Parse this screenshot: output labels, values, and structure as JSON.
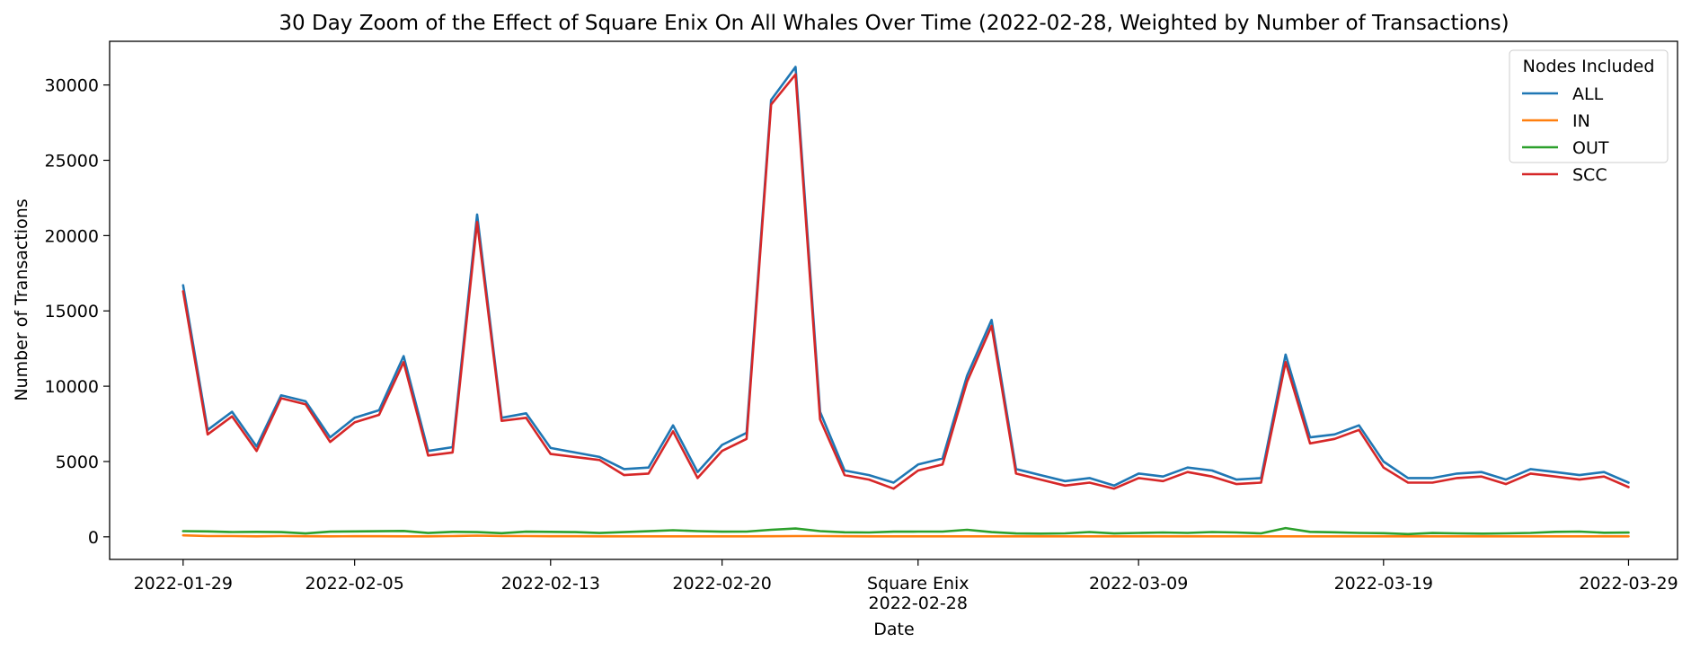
{
  "chart_data": {
    "type": "line",
    "title": "30 Day Zoom of the Effect of Square Enix On All Whales Over Time (2022-02-28, Weighted by Number of Transactions)",
    "xlabel": "Date",
    "ylabel": "Number of Transactions",
    "ylim": [
      -1500,
      32900
    ],
    "yticks": [
      0,
      5000,
      10000,
      15000,
      20000,
      25000,
      30000
    ],
    "xlim": [
      "2022-01-26",
      "2022-03-31"
    ],
    "xticks": [
      "2022-01-29",
      "2022-02-05",
      "2022-02-13",
      "2022-02-20",
      "2022-02-28",
      "2022-03-09",
      "2022-03-19",
      "2022-03-29"
    ],
    "event": {
      "date": "2022-02-28",
      "label": "Square Enix"
    },
    "legend": {
      "title": "Nodes Included",
      "placement": "top-right"
    },
    "grid": false,
    "dates": [
      "2022-01-29",
      "2022-01-30",
      "2022-01-31",
      "2022-02-01",
      "2022-02-02",
      "2022-02-03",
      "2022-02-04",
      "2022-02-05",
      "2022-02-06",
      "2022-02-07",
      "2022-02-08",
      "2022-02-09",
      "2022-02-10",
      "2022-02-11",
      "2022-02-12",
      "2022-02-13",
      "2022-02-14",
      "2022-02-15",
      "2022-02-16",
      "2022-02-17",
      "2022-02-18",
      "2022-02-19",
      "2022-02-20",
      "2022-02-21",
      "2022-02-22",
      "2022-02-23",
      "2022-02-24",
      "2022-02-25",
      "2022-02-26",
      "2022-02-27",
      "2022-02-28",
      "2022-03-01",
      "2022-03-02",
      "2022-03-03",
      "2022-03-04",
      "2022-03-05",
      "2022-03-06",
      "2022-03-07",
      "2022-03-08",
      "2022-03-09",
      "2022-03-10",
      "2022-03-11",
      "2022-03-12",
      "2022-03-13",
      "2022-03-14",
      "2022-03-15",
      "2022-03-16",
      "2022-03-17",
      "2022-03-18",
      "2022-03-19",
      "2022-03-20",
      "2022-03-21",
      "2022-03-22",
      "2022-03-23",
      "2022-03-24",
      "2022-03-25",
      "2022-03-26",
      "2022-03-27",
      "2022-03-28",
      "2022-03-29"
    ],
    "series": [
      {
        "name": "ALL",
        "color": "#1f77b4",
        "values": [
          16700,
          7100,
          8300,
          6000,
          9400,
          9000,
          6600,
          7900,
          8400,
          12000,
          5700,
          5950,
          21400,
          7900,
          8200,
          5900,
          5600,
          5300,
          4500,
          4600,
          7400,
          4300,
          6100,
          6900,
          29000,
          31200,
          8300,
          4400,
          4100,
          3600,
          4800,
          5200,
          10700,
          14400,
          4500,
          4100,
          3700,
          3900,
          3400,
          4200,
          4000,
          4600,
          4400,
          3800,
          3900,
          12100,
          6600,
          6800,
          7400,
          5000,
          3900,
          3900,
          4200,
          4300,
          3800,
          4500,
          4300,
          4100,
          4300,
          3600
        ]
      },
      {
        "name": "IN",
        "color": "#ff7f0e",
        "values": [
          100,
          50,
          50,
          30,
          50,
          40,
          30,
          40,
          40,
          30,
          30,
          50,
          80,
          50,
          50,
          40,
          40,
          30,
          30,
          30,
          30,
          30,
          30,
          30,
          40,
          50,
          50,
          40,
          30,
          30,
          30,
          30,
          30,
          30,
          30,
          30,
          30,
          30,
          30,
          30,
          30,
          30,
          30,
          30,
          30,
          30,
          30,
          30,
          30,
          30,
          30,
          30,
          30,
          30,
          30,
          30,
          30,
          30,
          30,
          30
        ]
      },
      {
        "name": "OUT",
        "color": "#2ca02c",
        "values": [
          380,
          360,
          320,
          330,
          310,
          220,
          340,
          360,
          370,
          390,
          250,
          330,
          310,
          240,
          340,
          330,
          310,
          250,
          310,
          370,
          440,
          380,
          340,
          350,
          470,
          550,
          380,
          300,
          290,
          340,
          350,
          350,
          470,
          310,
          220,
          210,
          230,
          320,
          220,
          260,
          290,
          260,
          320,
          290,
          230,
          580,
          330,
          300,
          260,
          240,
          180,
          250,
          230,
          210,
          230,
          260,
          330,
          350,
          270,
          280
        ]
      },
      {
        "name": "SCC",
        "color": "#d62728",
        "values": [
          16300,
          6800,
          8000,
          5700,
          9200,
          8800,
          6300,
          7600,
          8100,
          11600,
          5400,
          5600,
          20900,
          7700,
          7900,
          5500,
          5300,
          5100,
          4100,
          4200,
          7000,
          3900,
          5700,
          6500,
          28700,
          30700,
          7800,
          4100,
          3800,
          3200,
          4400,
          4800,
          10300,
          14000,
          4200,
          3800,
          3400,
          3600,
          3200,
          3900,
          3700,
          4300,
          4000,
          3500,
          3600,
          11600,
          6200,
          6500,
          7100,
          4600,
          3600,
          3600,
          3900,
          4000,
          3500,
          4200,
          4000,
          3800,
          4000,
          3300
        ]
      }
    ]
  }
}
